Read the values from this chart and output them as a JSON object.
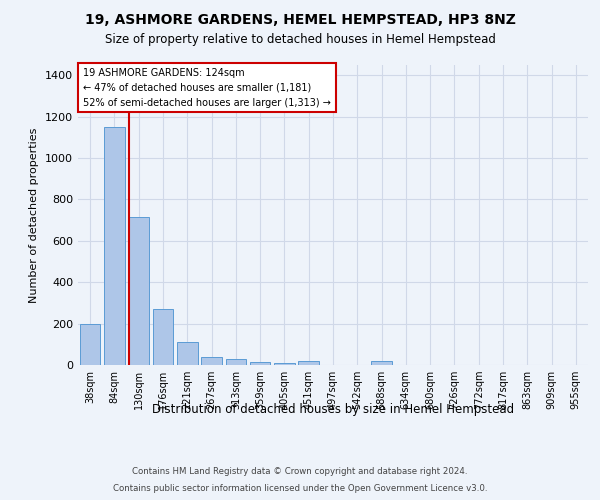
{
  "title1": "19, ASHMORE GARDENS, HEMEL HEMPSTEAD, HP3 8NZ",
  "title2": "Size of property relative to detached houses in Hemel Hempstead",
  "xlabel": "Distribution of detached houses by size in Hemel Hempstead",
  "ylabel": "Number of detached properties",
  "footer1": "Contains HM Land Registry data © Crown copyright and database right 2024.",
  "footer2": "Contains public sector information licensed under the Open Government Licence v3.0.",
  "categories": [
    "38sqm",
    "84sqm",
    "130sqm",
    "176sqm",
    "221sqm",
    "267sqm",
    "313sqm",
    "359sqm",
    "405sqm",
    "451sqm",
    "497sqm",
    "542sqm",
    "588sqm",
    "634sqm",
    "680sqm",
    "726sqm",
    "772sqm",
    "817sqm",
    "863sqm",
    "909sqm",
    "955sqm"
  ],
  "values": [
    196,
    1148,
    715,
    270,
    110,
    37,
    28,
    15,
    12,
    20,
    0,
    0,
    17,
    0,
    0,
    0,
    0,
    0,
    0,
    0,
    0
  ],
  "bar_color": "#aec6e8",
  "bar_edge_color": "#5b9bd5",
  "grid_color": "#d0d8e8",
  "background_color": "#eef3fa",
  "vline_x_index": 2,
  "vline_color": "#cc0000",
  "annotation_line1": "19 ASHMORE GARDENS: 124sqm",
  "annotation_line2": "← 47% of detached houses are smaller (1,181)",
  "annotation_line3": "52% of semi-detached houses are larger (1,313) →",
  "annotation_box_edgecolor": "#cc0000",
  "ylim": [
    0,
    1450
  ],
  "yticks": [
    0,
    200,
    400,
    600,
    800,
    1000,
    1200,
    1400
  ]
}
